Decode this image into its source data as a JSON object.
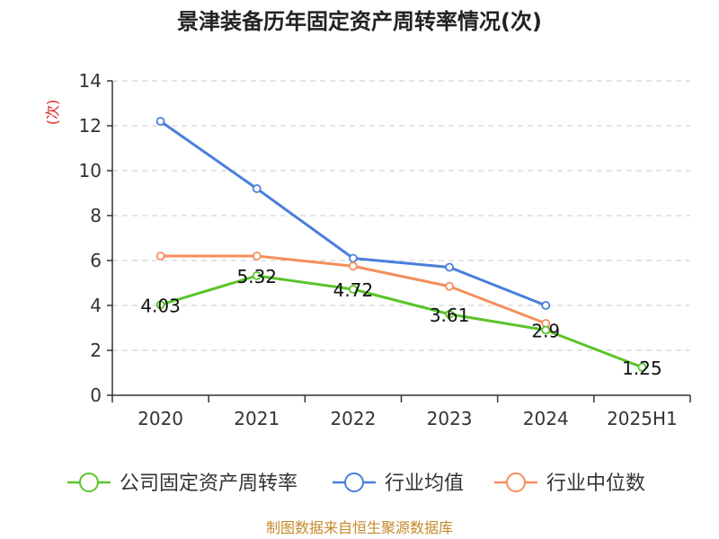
{
  "chart_data": {
    "type": "line",
    "title": "景津装备历年固定资产周转率情况(次)",
    "ylabel": "(次)",
    "xlabel": "",
    "categories": [
      "2020",
      "2021",
      "2022",
      "2023",
      "2024",
      "2025H1"
    ],
    "ylim": [
      0,
      14
    ],
    "yticks": [
      0,
      2,
      4,
      6,
      8,
      10,
      12,
      14
    ],
    "grid": true,
    "legend_position": "bottom",
    "series": [
      {
        "name": "公司固定资产周转率",
        "color": "#5bc42a",
        "values": [
          4.03,
          5.32,
          4.72,
          3.61,
          2.9,
          1.25
        ],
        "labels": [
          "4.03",
          "5.32",
          "4.72",
          "3.61",
          "2.9",
          "1.25"
        ]
      },
      {
        "name": "行业均值",
        "color": "#4a7fdc",
        "values": [
          12.2,
          9.2,
          6.1,
          5.7,
          4.0,
          null
        ]
      },
      {
        "name": "行业中位数",
        "color": "#f58e5a",
        "values": [
          6.2,
          6.2,
          5.75,
          4.85,
          3.2,
          null
        ]
      }
    ],
    "source": "制图数据来自恒生聚源数据库"
  }
}
